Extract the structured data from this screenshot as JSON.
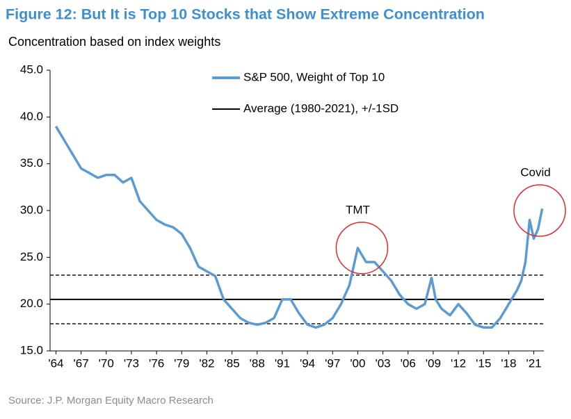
{
  "chart_data": {
    "type": "line",
    "title": "Figure 12: But It is Top 10 Stocks that Show Extreme Concentration",
    "subtitle": "Concentration based on index weights",
    "source": "Source: J.P. Morgan Equity Macro Research",
    "x": [
      1964,
      1965,
      1966,
      1967,
      1968,
      1969,
      1970,
      1971,
      1972,
      1973,
      1974,
      1975,
      1976,
      1977,
      1978,
      1979,
      1980,
      1981,
      1982,
      1983,
      1984,
      1985,
      1986,
      1987,
      1988,
      1989,
      1990,
      1991,
      1992,
      1993,
      1994,
      1995,
      1996,
      1997,
      1998,
      1999,
      2000,
      2001,
      2002,
      2003,
      2004,
      2005,
      2006,
      2007,
      2008,
      2008.8,
      2009.3,
      2010,
      2011,
      2012,
      2013,
      2014,
      2015,
      2016,
      2017,
      2018,
      2019,
      2019.5,
      2020,
      2020.5,
      2021,
      2021.5,
      2022
    ],
    "series": [
      {
        "name": "S&P 500, Weight of Top 10",
        "color": "#5b9bd5",
        "values": [
          39.0,
          37.5,
          36.0,
          34.5,
          34.0,
          33.5,
          33.8,
          33.8,
          33.0,
          33.5,
          31.0,
          30.0,
          29.0,
          28.5,
          28.2,
          27.5,
          26.0,
          24.0,
          23.5,
          23.0,
          20.5,
          19.5,
          18.5,
          18.0,
          17.8,
          18.0,
          18.5,
          20.5,
          20.5,
          19.0,
          17.8,
          17.5,
          17.8,
          18.5,
          20.0,
          22.0,
          26.0,
          24.5,
          24.5,
          23.5,
          22.5,
          21.0,
          20.0,
          19.5,
          20.0,
          22.8,
          20.5,
          19.5,
          18.8,
          20.0,
          19.0,
          17.8,
          17.5,
          17.5,
          18.5,
          20.0,
          21.5,
          22.5,
          24.5,
          29.0,
          27.0,
          28.0,
          30.2
        ]
      }
    ],
    "reference_lines": [
      {
        "name": "Average (1980-2021), +/-1SD",
        "color": "#000000",
        "value": 20.5,
        "band": [
          17.9,
          23.1
        ]
      }
    ],
    "annotations": [
      {
        "text": "TMT",
        "x": 2000.5,
        "y": 26.0
      },
      {
        "text": "Covid",
        "x": 2021.7,
        "y": 30.0
      }
    ],
    "xlim": [
      1963.3,
      2022.2
    ],
    "xticks": [
      {
        "value": 1964,
        "label": "'64"
      },
      {
        "value": 1967,
        "label": "'67"
      },
      {
        "value": 1970,
        "label": "'70"
      },
      {
        "value": 1973,
        "label": "'73"
      },
      {
        "value": 1976,
        "label": "'76"
      },
      {
        "value": 1979,
        "label": "'79"
      },
      {
        "value": 1982,
        "label": "'82"
      },
      {
        "value": 1985,
        "label": "'85"
      },
      {
        "value": 1988,
        "label": "'88"
      },
      {
        "value": 1991,
        "label": "'91"
      },
      {
        "value": 1994,
        "label": "'94"
      },
      {
        "value": 1997,
        "label": "'97"
      },
      {
        "value": 2000,
        "label": "'00"
      },
      {
        "value": 2003,
        "label": "'03"
      },
      {
        "value": 2006,
        "label": "'06"
      },
      {
        "value": 2009,
        "label": "'09"
      },
      {
        "value": 2012,
        "label": "'12"
      },
      {
        "value": 2015,
        "label": "'15"
      },
      {
        "value": 2018,
        "label": "'18"
      },
      {
        "value": 2021,
        "label": "'21"
      }
    ],
    "ylim": [
      15,
      45
    ],
    "yticks": [
      {
        "value": 15,
        "label": "15.0"
      },
      {
        "value": 20,
        "label": "20.0"
      },
      {
        "value": 25,
        "label": "25.0"
      },
      {
        "value": 30,
        "label": "30.0"
      },
      {
        "value": 35,
        "label": "35.0"
      },
      {
        "value": 40,
        "label": "40.0"
      },
      {
        "value": 45,
        "label": "45.0"
      }
    ]
  }
}
